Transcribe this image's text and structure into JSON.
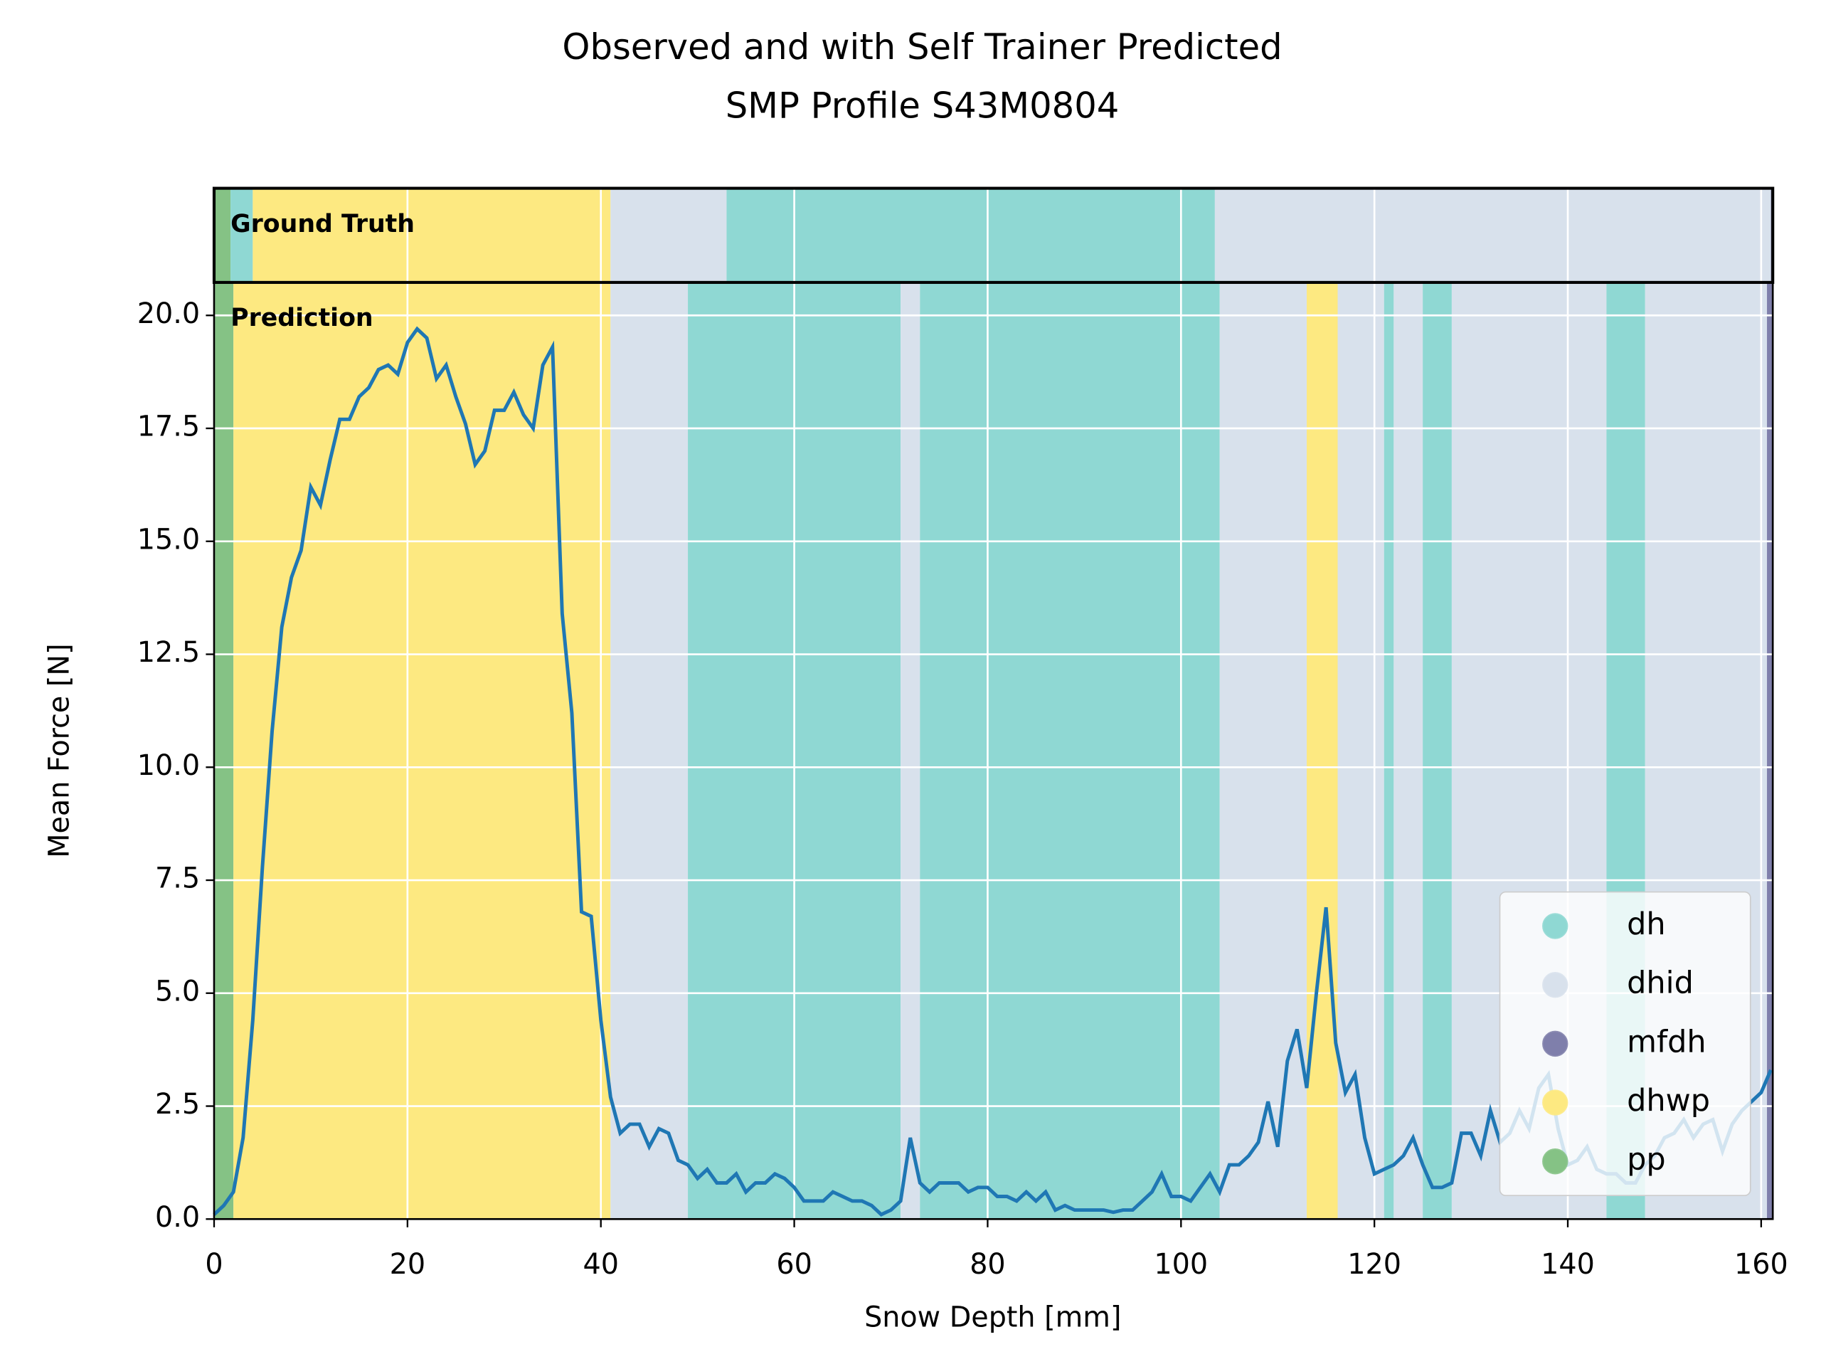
{
  "chart_data": {
    "type": "line",
    "title": "Observed and with Self Trainer Predicted",
    "subtitle": "SMP Profile S43M0804",
    "x_label": "Snow Depth [mm]",
    "y_label": "Mean Force [N]",
    "annotations": [
      "Ground Truth",
      "Prediction"
    ],
    "xlim": [
      0,
      161.2
    ],
    "ylim": [
      0,
      20.73
    ],
    "xticks": [
      0,
      20,
      40,
      60,
      80,
      100,
      120,
      140,
      160
    ],
    "yticks": [
      {
        "value": 0,
        "label": "0.0"
      },
      2.5,
      {
        "value": 5,
        "label": "5.0"
      },
      7.5,
      {
        "value": 10,
        "label": "10.0"
      },
      12.5,
      {
        "value": 15,
        "label": "15.0"
      },
      17.5,
      {
        "value": 20,
        "label": "20.0"
      }
    ],
    "grid": true,
    "legend_position": "lower right",
    "classes": [
      {
        "name": "dh",
        "color": "#8fd8d3"
      },
      {
        "name": "dhid",
        "color": "#d8e1ec"
      },
      {
        "name": "mfdh",
        "color": "#7f7fab"
      },
      {
        "name": "dhwp",
        "color": "#fde981"
      },
      {
        "name": "pp",
        "color": "#85c285"
      }
    ],
    "ground_truth": [
      {
        "label": "pp",
        "start": 0,
        "end": 1.7
      },
      {
        "label": "dh",
        "start": 1.7,
        "end": 4
      },
      {
        "label": "dhwp",
        "start": 4,
        "end": 41
      },
      {
        "label": "dhid",
        "start": 41,
        "end": 53
      },
      {
        "label": "dh",
        "start": 53,
        "end": 103.5
      },
      {
        "label": "dhid",
        "start": 103.5,
        "end": 161
      },
      {
        "label": "mfdh",
        "start": 161,
        "end": 161.2
      }
    ],
    "prediction": [
      {
        "label": "pp",
        "start": 0,
        "end": 2
      },
      {
        "label": "dhwp",
        "start": 2,
        "end": 41
      },
      {
        "label": "dhid",
        "start": 41,
        "end": 49
      },
      {
        "label": "dh",
        "start": 49,
        "end": 71
      },
      {
        "label": "dhid",
        "start": 71,
        "end": 73
      },
      {
        "label": "dh",
        "start": 73,
        "end": 104
      },
      {
        "label": "dhid",
        "start": 104,
        "end": 113
      },
      {
        "label": "dhwp",
        "start": 113,
        "end": 116.2
      },
      {
        "label": "dhid",
        "start": 116.2,
        "end": 121
      },
      {
        "label": "dh",
        "start": 121,
        "end": 122
      },
      {
        "label": "dhid",
        "start": 122,
        "end": 125
      },
      {
        "label": "dh",
        "start": 125,
        "end": 128
      },
      {
        "label": "dhid",
        "start": 128,
        "end": 144
      },
      {
        "label": "dh",
        "start": 144,
        "end": 148
      },
      {
        "label": "dhid",
        "start": 148,
        "end": 160.6
      },
      {
        "label": "mfdh",
        "start": 160.6,
        "end": 161.2
      }
    ],
    "line_color": "#1f77b4",
    "x": [
      0,
      1,
      2,
      3,
      4,
      5,
      6,
      7,
      8,
      9,
      10,
      11,
      12,
      13,
      14,
      15,
      16,
      17,
      18,
      19,
      20,
      21,
      22,
      23,
      24,
      25,
      26,
      27,
      28,
      29,
      30,
      31,
      32,
      33,
      34,
      35,
      36,
      37,
      38,
      39,
      40,
      41,
      42,
      43,
      44,
      45,
      46,
      47,
      48,
      49,
      50,
      51,
      52,
      53,
      54,
      55,
      56,
      57,
      58,
      59,
      60,
      61,
      62,
      63,
      64,
      65,
      66,
      67,
      68,
      69,
      70,
      71,
      72,
      73,
      74,
      75,
      76,
      77,
      78,
      79,
      80,
      81,
      82,
      83,
      84,
      85,
      86,
      87,
      88,
      89,
      90,
      91,
      92,
      93,
      94,
      95,
      96,
      97,
      98,
      99,
      100,
      101,
      102,
      103,
      104,
      105,
      106,
      107,
      108,
      109,
      110,
      111,
      112,
      113,
      114,
      115,
      116,
      117,
      118,
      119,
      120,
      121,
      122,
      123,
      124,
      125,
      126,
      127,
      128,
      129,
      130,
      131,
      132,
      133,
      134,
      135,
      136,
      137,
      138,
      139,
      140,
      141,
      142,
      143,
      144,
      145,
      146,
      147,
      148,
      149,
      150,
      151,
      152,
      153,
      154,
      155,
      156,
      157,
      158,
      159,
      160,
      161
    ],
    "values": [
      0.1,
      0.3,
      0.6,
      1.8,
      4.4,
      7.8,
      10.8,
      13.1,
      14.2,
      14.8,
      16.2,
      15.8,
      16.8,
      17.7,
      17.7,
      18.2,
      18.4,
      18.8,
      18.9,
      18.7,
      19.4,
      19.7,
      19.5,
      18.6,
      18.9,
      18.2,
      17.6,
      16.7,
      17.0,
      17.9,
      17.9,
      18.3,
      17.8,
      17.5,
      18.9,
      19.3,
      13.4,
      11.2,
      6.8,
      6.7,
      4.4,
      2.7,
      1.9,
      2.1,
      2.1,
      1.6,
      2.0,
      1.9,
      1.3,
      1.2,
      0.9,
      1.1,
      0.8,
      0.8,
      1.0,
      0.6,
      0.8,
      0.8,
      1.0,
      0.9,
      0.7,
      0.4,
      0.4,
      0.4,
      0.6,
      0.5,
      0.4,
      0.4,
      0.3,
      0.1,
      0.2,
      0.4,
      1.8,
      0.8,
      0.6,
      0.8,
      0.8,
      0.8,
      0.6,
      0.7,
      0.7,
      0.5,
      0.5,
      0.4,
      0.6,
      0.4,
      0.6,
      0.2,
      0.3,
      0.2,
      0.2,
      0.2,
      0.2,
      0.15,
      0.2,
      0.2,
      0.4,
      0.6,
      1.0,
      0.5,
      0.5,
      0.4,
      0.7,
      1.0,
      0.6,
      1.2,
      1.2,
      1.4,
      1.7,
      2.6,
      1.6,
      3.5,
      4.2,
      2.9,
      5.0,
      6.9,
      3.9,
      2.8,
      3.2,
      1.8,
      1.0,
      1.1,
      1.2,
      1.4,
      1.8,
      1.2,
      0.7,
      0.7,
      0.8,
      1.9,
      1.9,
      1.4,
      2.4,
      1.7,
      1.9,
      2.4,
      2.0,
      2.9,
      3.2,
      2.0,
      1.2,
      1.3,
      1.6,
      1.1,
      1.0,
      1.0,
      0.8,
      0.8,
      1.2,
      1.4,
      1.8,
      1.9,
      2.2,
      1.8,
      2.1,
      2.2,
      1.5,
      2.1,
      2.4,
      2.6,
      2.8,
      3.3
    ]
  }
}
